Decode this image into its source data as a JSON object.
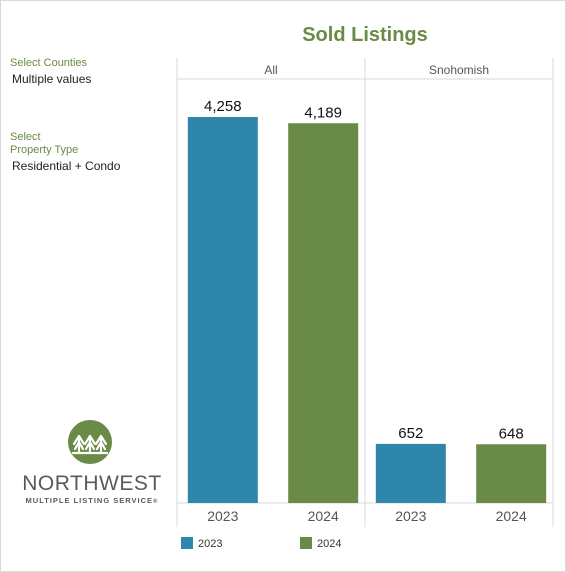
{
  "title": "Sold Listings",
  "filters": {
    "counties_label": "Select Counties",
    "counties_value": "Multiple values",
    "property_label_line1": "Select",
    "property_label_line2": "Property Type",
    "property_value": "Residential + Condo"
  },
  "logo": {
    "word": "NORTHWEST",
    "sub": "MULTIPLE LISTING SERVICE",
    "mark": "®"
  },
  "colors": {
    "y2023": "#2e86ab",
    "y2024": "#6a8a47",
    "title": "#6a8a47"
  },
  "chart_data": {
    "type": "bar",
    "title": "Sold Listings",
    "panels": [
      {
        "name": "All",
        "categories": [
          "2023",
          "2024"
        ],
        "values": [
          4258,
          4189
        ],
        "labels": [
          "4,258",
          "4,189"
        ]
      },
      {
        "name": "Snohomish",
        "categories": [
          "2023",
          "2024"
        ],
        "values": [
          652,
          648
        ],
        "labels": [
          "652",
          "648"
        ]
      }
    ],
    "ylim": [
      0,
      4258
    ],
    "legend": {
      "position": "bottom",
      "entries": [
        "2023",
        "2024"
      ]
    }
  }
}
